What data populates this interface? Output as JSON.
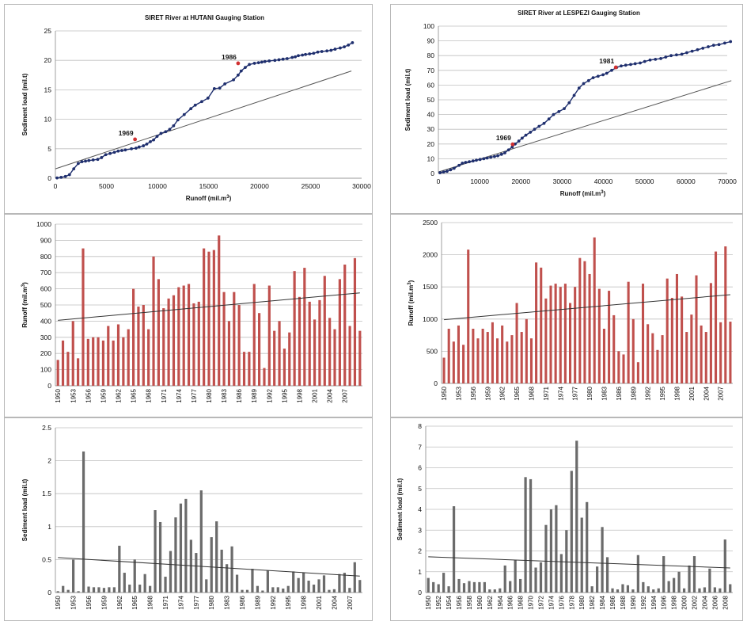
{
  "chart_data": [
    {
      "id": "hutani-cumulative",
      "type": "line",
      "title": "SIRET River at HUTANI Gauging  Station",
      "xlabel": "Runoff (mil.m",
      "xlabel_sup": "3",
      "xlabel_end": ")",
      "ylabel": "Sediment load (mil.t)",
      "xlim": [
        0,
        30000
      ],
      "ylim": [
        0,
        25
      ],
      "x_ticks": [
        0,
        5000,
        10000,
        15000,
        20000,
        25000,
        30000
      ],
      "y_ticks": [
        0,
        5,
        10,
        15,
        20,
        25
      ],
      "grid": true,
      "series": [
        {
          "color": "#1f2f6e",
          "x": [
            160,
            560,
            980,
            1380,
            1800,
            2240,
            2600,
            2950,
            3280,
            3700,
            4150,
            4520,
            4930,
            5360,
            5780,
            6150,
            6510,
            6850,
            7450,
            7900,
            8200,
            8620,
            8950,
            9300,
            9620,
            9960,
            10340,
            10800,
            11200,
            11580,
            12000,
            12620,
            13270,
            13700,
            14340,
            14950,
            15570,
            16100,
            16600,
            17450,
            17900,
            18200,
            18600,
            19000,
            19500,
            19900,
            20220,
            20520,
            20950,
            21500,
            21900,
            22300,
            22700,
            23200,
            23500,
            23800,
            24200,
            24500,
            24900,
            25300,
            25700,
            26100,
            26600,
            27000,
            27400,
            27900,
            28300,
            28700,
            29100
          ],
          "y": [
            0.05,
            0.15,
            0.3,
            0.6,
            1.6,
            2.5,
            2.8,
            2.9,
            3.0,
            3.1,
            3.2,
            3.5,
            4.0,
            4.2,
            4.4,
            4.6,
            4.7,
            4.8,
            5.0,
            5.1,
            5.3,
            5.5,
            5.8,
            6.2,
            6.5,
            7.1,
            7.6,
            7.9,
            8.3,
            8.9,
            9.9,
            10.8,
            11.8,
            12.4,
            13.0,
            13.6,
            15.2,
            15.3,
            16.0,
            16.7,
            17.5,
            18.2,
            18.8,
            19.3,
            19.5,
            19.6,
            19.7,
            19.8,
            19.9,
            20.0,
            20.1,
            20.2,
            20.3,
            20.5,
            20.6,
            20.8,
            20.9,
            21.0,
            21.1,
            21.2,
            21.4,
            21.5,
            21.6,
            21.7,
            21.9,
            22.1,
            22.3,
            22.6,
            23.0
          ]
        }
      ],
      "trend": {
        "x": [
          0,
          29000
        ],
        "y": [
          1.6,
          18.2
        ]
      },
      "markers": [
        {
          "label": "1969",
          "x": 7800,
          "y": 6.6,
          "color": "#d03030"
        },
        {
          "label": "1986",
          "x": 17900,
          "y": 19.5,
          "color": "#d03030"
        }
      ]
    },
    {
      "id": "lespezi-cumulative",
      "type": "line",
      "title": "SIRET River at LESPEZI Gauging  Station",
      "xlabel": "Runoff (mil.m",
      "xlabel_sup": "3",
      "xlabel_end": ")",
      "ylabel": "Sediment load (mil.t)",
      "xlim": [
        0,
        70000
      ],
      "ylim": [
        0,
        100
      ],
      "x_ticks": [
        0,
        10000,
        20000,
        30000,
        40000,
        50000,
        60000,
        70000
      ],
      "y_ticks": [
        0,
        10,
        20,
        30,
        40,
        50,
        60,
        70,
        80,
        90,
        100
      ],
      "grid": true,
      "series": [
        {
          "color": "#1f2f6e",
          "x": [
            400,
            1250,
            2100,
            2950,
            3800,
            5000,
            5800,
            6600,
            7500,
            8400,
            9200,
            10100,
            11000,
            11800,
            12700,
            13600,
            14400,
            15300,
            16100,
            17000,
            17900,
            18600,
            19500,
            20300,
            21200,
            22300,
            23300,
            24400,
            25600,
            26800,
            27900,
            29200,
            30500,
            31700,
            32900,
            34100,
            35200,
            36400,
            37500,
            38700,
            39900,
            40800,
            42000,
            43200,
            44300,
            45400,
            46600,
            47700,
            48900,
            50000,
            51300,
            52600,
            53900,
            55100,
            56400,
            57700,
            59000,
            60200,
            61500,
            62800,
            64100,
            65400,
            66700,
            68000,
            69400,
            70800
          ],
          "y": [
            0.5,
            1,
            1.5,
            2.5,
            3.5,
            5.5,
            7,
            7.5,
            8,
            8.5,
            9,
            9.5,
            10,
            10.5,
            11,
            11.5,
            12,
            13,
            14,
            16,
            18,
            20,
            22,
            24,
            26,
            28,
            30,
            32,
            34,
            37,
            40,
            42,
            44,
            48,
            53,
            58,
            61,
            63,
            65,
            66,
            67,
            68,
            70,
            72,
            73,
            73.5,
            74,
            74.5,
            75,
            76,
            77,
            77.5,
            78,
            79,
            80,
            80.5,
            81,
            82,
            83,
            84,
            85,
            86,
            87,
            87.5,
            88.5,
            89.5
          ]
        }
      ],
      "trend": {
        "x": [
          0,
          71000
        ],
        "y": [
          1,
          63
        ]
      },
      "markers": [
        {
          "label": "1969",
          "x": 18000,
          "y": 19.8,
          "color": "#d03030"
        },
        {
          "label": "1981",
          "x": 43000,
          "y": 72,
          "color": "#d03030"
        }
      ]
    },
    {
      "id": "hutani-runoff",
      "type": "bar",
      "ylabel": "Runoff (mil.m",
      "ylabel_sup": "3",
      "ylabel_end": ")",
      "ylim": [
        0,
        1000
      ],
      "y_ticks": [
        0,
        100,
        200,
        300,
        400,
        500,
        600,
        700,
        800,
        900,
        1000
      ],
      "grid": true,
      "color": "#c0504d",
      "tick_labels": [
        "1950",
        "1953",
        "1956",
        "1959",
        "1962",
        "1965",
        "1968",
        "1971",
        "1974",
        "1977",
        "1980",
        "1983",
        "1986",
        "1989",
        "1992",
        "1995",
        "1998",
        "2001",
        "2004",
        "2007"
      ],
      "tick_every": 3,
      "values": [
        160,
        280,
        210,
        400,
        170,
        850,
        290,
        300,
        300,
        280,
        370,
        280,
        380,
        300,
        350,
        600,
        490,
        500,
        350,
        800,
        660,
        480,
        540,
        560,
        610,
        620,
        630,
        510,
        520,
        850,
        830,
        840,
        930,
        580,
        400,
        580,
        500,
        210,
        210,
        630,
        450,
        110,
        620,
        340,
        400,
        230,
        330,
        710,
        550,
        730,
        520,
        410,
        530,
        680,
        420,
        350,
        660,
        750,
        370,
        790,
        340
      ],
      "trend": {
        "y": [
          405,
          575
        ]
      }
    },
    {
      "id": "lespezi-runoff",
      "type": "bar",
      "ylabel": "Runoff (mil.m",
      "ylabel_sup": "3",
      "ylabel_end": ")",
      "ylim": [
        0,
        2500
      ],
      "y_ticks": [
        0,
        500,
        1000,
        1500,
        2000,
        2500
      ],
      "grid": true,
      "color": "#c0504d",
      "tick_labels": [
        "1950",
        "1953",
        "1956",
        "1959",
        "1962",
        "1965",
        "1968",
        "1971",
        "1974",
        "1977",
        "1980",
        "1983",
        "1986",
        "1989",
        "1992",
        "1995",
        "1998",
        "2001",
        "2004",
        "2007"
      ],
      "tick_every": 3,
      "values": [
        400,
        850,
        650,
        900,
        600,
        2080,
        850,
        700,
        850,
        800,
        950,
        700,
        900,
        650,
        750,
        1250,
        800,
        1000,
        700,
        1880,
        1800,
        1320,
        1520,
        1550,
        1500,
        1550,
        1250,
        1500,
        1950,
        1900,
        1700,
        2270,
        1470,
        850,
        1440,
        1060,
        500,
        450,
        1580,
        1000,
        330,
        1550,
        920,
        780,
        520,
        750,
        1630,
        1330,
        1700,
        1350,
        800,
        1070,
        1680,
        900,
        800,
        1560,
        2050,
        950,
        2130,
        960
      ],
      "trend": {
        "y": [
          990,
          1380
        ]
      }
    },
    {
      "id": "hutani-sediment",
      "type": "bar",
      "ylabel": "Sediment load (mil.t)",
      "ylim": [
        0,
        2.5
      ],
      "y_ticks": [
        0,
        0.5,
        1,
        1.5,
        2,
        2.5
      ],
      "y_tick_labels": [
        "0",
        "0.5",
        "1",
        "1.5",
        "2",
        "2.5"
      ],
      "grid": true,
      "color": "#6b6b6b",
      "tick_labels": [
        "1950",
        "1953",
        "1956",
        "1959",
        "1962",
        "1965",
        "1968",
        "1971",
        "1974",
        "1977",
        "1980",
        "1983",
        "1986",
        "1989",
        "1992",
        "1995",
        "1998",
        "2001",
        "2004",
        "2007"
      ],
      "tick_every": 3,
      "values": [
        0.02,
        0.1,
        0.04,
        0.5,
        0.02,
        2.14,
        0.09,
        0.08,
        0.08,
        0.07,
        0.08,
        0.08,
        0.71,
        0.3,
        0.12,
        0.5,
        0.12,
        0.28,
        0.1,
        1.25,
        1.07,
        0.24,
        0.63,
        1.14,
        1.35,
        1.42,
        0.8,
        0.6,
        1.55,
        0.2,
        0.84,
        1.08,
        0.65,
        0.43,
        0.7,
        0.27,
        0.04,
        0.04,
        0.36,
        0.1,
        0.03,
        0.33,
        0.08,
        0.08,
        0.06,
        0.1,
        0.32,
        0.22,
        0.3,
        0.18,
        0.12,
        0.2,
        0.26,
        0.04,
        0.05,
        0.28,
        0.3,
        0.07,
        0.46,
        0.19
      ],
      "trend": {
        "y": [
          0.53,
          0.25
        ]
      }
    },
    {
      "id": "lespezi-sediment",
      "type": "bar",
      "ylabel": "Sediment load (mil.t)",
      "ylim": [
        0,
        8
      ],
      "y_ticks": [
        0,
        1,
        2,
        3,
        4,
        5,
        6,
        7,
        8
      ],
      "grid": true,
      "color": "#6b6b6b",
      "tick_labels": [
        "1950",
        "1952",
        "1954",
        "1956",
        "1958",
        "1960",
        "1962",
        "1964",
        "1966",
        "1968",
        "1970",
        "1972",
        "1974",
        "1976",
        "1978",
        "1980",
        "1982",
        "1984",
        "1986",
        "1988",
        "1990",
        "1992",
        "1994",
        "1996",
        "1998",
        "2000",
        "2002",
        "2004",
        "2006",
        "2008"
      ],
      "tick_every": 2,
      "values": [
        0.7,
        0.5,
        0.4,
        0.95,
        0.3,
        4.15,
        0.65,
        0.45,
        0.55,
        0.5,
        0.5,
        0.5,
        0.15,
        0.15,
        0.2,
        1.3,
        0.55,
        1.55,
        0.65,
        5.55,
        5.45,
        1.2,
        1.45,
        3.25,
        4.0,
        4.2,
        1.85,
        3.0,
        5.85,
        7.3,
        3.6,
        4.35,
        0.3,
        1.25,
        3.15,
        1.7,
        0.2,
        0.15,
        0.4,
        0.35,
        0.15,
        1.8,
        0.5,
        0.3,
        0.15,
        0.2,
        1.75,
        0.55,
        0.7,
        1.0,
        0.2,
        1.3,
        1.75,
        0.2,
        0.25,
        1.15,
        0.25,
        0.2,
        2.55,
        0.4
      ],
      "trend": {
        "y": [
          1.72,
          1.18
        ]
      }
    }
  ]
}
